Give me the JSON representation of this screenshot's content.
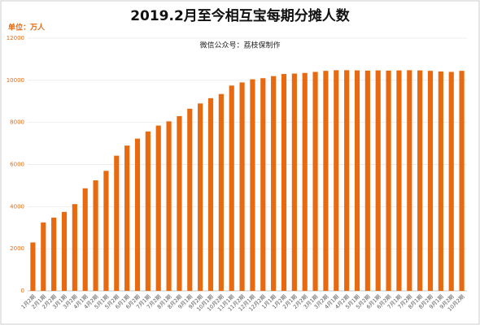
{
  "chart_data": {
    "type": "bar",
    "title": "2019.2月至今相互宝每期分摊人数",
    "unit_label": "单位：万人",
    "subtitle": "微信公众号：荔枝保制作",
    "categories": [
      "1月2期",
      "2月1期",
      "2月2期",
      "3月1期",
      "3月2期",
      "4月1期",
      "4月2期",
      "5月1期",
      "5月2期",
      "6月1期",
      "6月2期",
      "7月1期",
      "7月2期",
      "8月1期",
      "8月2期",
      "9月1期",
      "9月2期",
      "10月1期",
      "10月2期",
      "11月1期",
      "11月2期",
      "12月1期",
      "12月2期",
      "1月1期",
      "1月2期",
      "2月1期",
      "2月2期",
      "3月1期",
      "3月2期",
      "4月1期",
      "4月2期",
      "5月1期",
      "5月2期",
      "6月1期",
      "6月2期",
      "7月1期",
      "7月2期",
      "8月1期",
      "8月2期",
      "9月1期",
      "9月2期",
      "10月2期"
    ],
    "values": [
      2300,
      3250,
      3480,
      3750,
      4120,
      4870,
      5250,
      5700,
      6420,
      6900,
      7230,
      7570,
      7850,
      8050,
      8300,
      8650,
      8900,
      9150,
      9350,
      9750,
      9900,
      10050,
      10100,
      10200,
      10300,
      10320,
      10350,
      10400,
      10450,
      10480,
      10480,
      10470,
      10460,
      10470,
      10460,
      10470,
      10480,
      10470,
      10450,
      10420,
      10400,
      10450
    ],
    "color": "#e86a10",
    "ylim": [
      0,
      12000
    ],
    "yticks": [
      0,
      2000,
      4000,
      6000,
      8000,
      10000,
      12000
    ],
    "grid": true
  }
}
